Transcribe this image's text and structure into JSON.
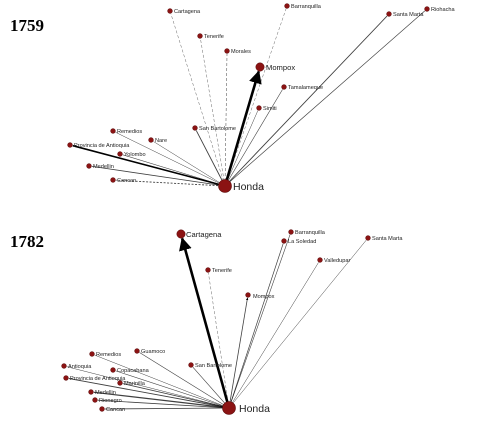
{
  "colors": {
    "node": "#8b1313",
    "node_stroke": "#5a0a0a",
    "edge": "#000000"
  },
  "panels": [
    {
      "year": "1759",
      "hub": "Honda",
      "nodes": [
        {
          "name": "Cartagena"
        },
        {
          "name": "Barranquilla"
        },
        {
          "name": "Santa Marta"
        },
        {
          "name": "Riohacha"
        },
        {
          "name": "Tenerife"
        },
        {
          "name": "Morales"
        },
        {
          "name": "Mompox",
          "major": true
        },
        {
          "name": "Tamalameque"
        },
        {
          "name": "Simiti"
        },
        {
          "name": "San Bartolome"
        },
        {
          "name": "Remedios"
        },
        {
          "name": "Nare"
        },
        {
          "name": "Provincia de Antioquia"
        },
        {
          "name": "Yolombo"
        },
        {
          "name": "Medellin"
        },
        {
          "name": "Cancan"
        }
      ]
    },
    {
      "year": "1782",
      "hub": "Honda",
      "nodes": [
        {
          "name": "Cartagena",
          "major": true
        },
        {
          "name": "Barranquilla"
        },
        {
          "name": "La Soledad"
        },
        {
          "name": "Santa Marta"
        },
        {
          "name": "Valledupar"
        },
        {
          "name": "Tenerife"
        },
        {
          "name": "Mompox"
        },
        {
          "name": "Remedios"
        },
        {
          "name": "Guamoco"
        },
        {
          "name": "Antioquia"
        },
        {
          "name": "Copacabana"
        },
        {
          "name": "Provincia de Antioquia"
        },
        {
          "name": "Marinilla"
        },
        {
          "name": "San Bartolome"
        },
        {
          "name": "Medellin"
        },
        {
          "name": "Rionegro"
        },
        {
          "name": "Cancan"
        }
      ]
    }
  ]
}
